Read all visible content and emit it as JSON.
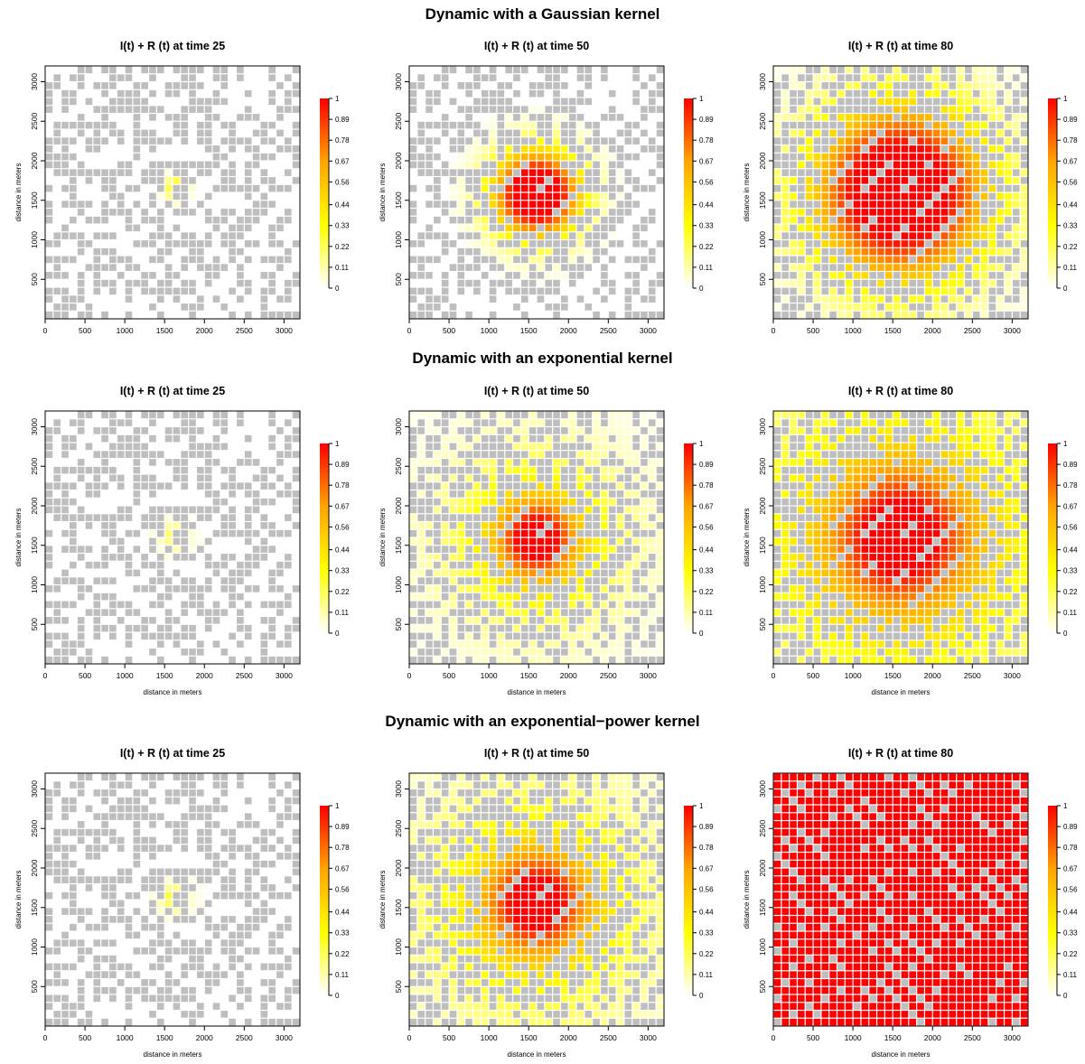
{
  "sections": [
    {
      "title": "Dynamic with a Gaussian kernel"
    },
    {
      "title": "Dynamic with an exponential kernel"
    },
    {
      "title": "Dynamic with an  exponential−power kernel"
    }
  ],
  "panel_titles": [
    "I(t) + R (t) at time 25",
    "I(t) + R (t) at time 50",
    "I(t) + R (t) at time 80"
  ],
  "colors": {
    "empty_cell": "#ffffff",
    "susceptible_host": "#bebebe",
    "ramp": [
      "#ffffff",
      "#ffff00",
      "#ffa500",
      "#ff0000"
    ]
  },
  "chart_data": [
    {
      "type": "heatmap",
      "kernel": "Gaussian",
      "time": 25,
      "title": "I(t) + R (t) at time 25",
      "xlabel": "",
      "ylabel": "distance in meters",
      "xlim": [
        0,
        3200
      ],
      "ylim": [
        0,
        3200
      ],
      "xticks": [
        0,
        500,
        1000,
        1500,
        2000,
        2500,
        3000
      ],
      "yticks": [
        500,
        1000,
        1500,
        2000,
        2500,
        3000
      ],
      "legend_ticks": [
        0,
        0.11,
        0.22,
        0.33,
        0.44,
        0.56,
        0.67,
        0.78,
        0.89,
        1
      ],
      "legend_range": [
        0,
        1
      ],
      "infection_center": [
        1650,
        1650
      ],
      "infection_radius": 220,
      "infection_peak": 0.28,
      "spread": "gaussian"
    },
    {
      "type": "heatmap",
      "kernel": "Gaussian",
      "time": 50,
      "title": "I(t) + R (t) at time 50",
      "xlabel": "",
      "ylabel": "distance in meters",
      "xlim": [
        0,
        3200
      ],
      "ylim": [
        0,
        3200
      ],
      "xticks": [
        0,
        500,
        1000,
        1500,
        2000,
        2500,
        3000
      ],
      "yticks": [
        500,
        1000,
        1500,
        2000,
        2500,
        3000
      ],
      "legend_ticks": [
        0,
        0.11,
        0.22,
        0.33,
        0.44,
        0.56,
        0.67,
        0.78,
        0.89,
        1
      ],
      "legend_range": [
        0,
        1
      ],
      "infection_center": [
        1600,
        1580
      ],
      "infection_radius": 820,
      "infection_peak": 1.0,
      "spread": "gaussian"
    },
    {
      "type": "heatmap",
      "kernel": "Gaussian",
      "time": 80,
      "title": "I(t) + R (t) at time 80",
      "xlabel": "",
      "ylabel": "distance in meters",
      "xlim": [
        0,
        3200
      ],
      "ylim": [
        0,
        3200
      ],
      "xticks": [
        0,
        500,
        1000,
        1500,
        2000,
        2500,
        3000
      ],
      "yticks": [
        500,
        1000,
        1500,
        2000,
        2500,
        3000
      ],
      "legend_ticks": [
        0,
        0.11,
        0.22,
        0.33,
        0.44,
        0.56,
        0.67,
        0.78,
        0.89,
        1
      ],
      "legend_range": [
        0,
        1
      ],
      "infection_center": [
        1600,
        1600
      ],
      "infection_radius": 1650,
      "infection_peak": 1.0,
      "spread": "gaussian"
    },
    {
      "type": "heatmap",
      "kernel": "exponential",
      "time": 25,
      "title": "I(t) + R (t) at time 25",
      "xlabel": "distance in meters",
      "ylabel": "distance in meters",
      "xlim": [
        0,
        3200
      ],
      "ylim": [
        0,
        3200
      ],
      "xticks": [
        0,
        500,
        1000,
        1500,
        2000,
        2500,
        3000
      ],
      "yticks": [
        500,
        1000,
        1500,
        2000,
        2500,
        3000
      ],
      "legend_ticks": [
        0,
        0.11,
        0.22,
        0.33,
        0.44,
        0.56,
        0.67,
        0.78,
        0.89,
        1
      ],
      "legend_range": [
        0,
        1
      ],
      "infection_center": [
        1630,
        1620
      ],
      "infection_radius": 200,
      "infection_peak": 0.26,
      "spread": "exponential"
    },
    {
      "type": "heatmap",
      "kernel": "exponential",
      "time": 50,
      "title": "I(t) + R (t) at time 50",
      "xlabel": "distance in meters",
      "ylabel": "distance in meters",
      "xlim": [
        0,
        3200
      ],
      "ylim": [
        0,
        3200
      ],
      "xticks": [
        0,
        500,
        1000,
        1500,
        2000,
        2500,
        3000
      ],
      "yticks": [
        500,
        1000,
        1500,
        2000,
        2500,
        3000
      ],
      "legend_ticks": [
        0,
        0.11,
        0.22,
        0.33,
        0.44,
        0.56,
        0.67,
        0.78,
        0.89,
        1
      ],
      "legend_range": [
        0,
        1
      ],
      "infection_center": [
        1600,
        1580
      ],
      "infection_radius": 950,
      "infection_peak": 1.0,
      "spread": "exponential"
    },
    {
      "type": "heatmap",
      "kernel": "exponential",
      "time": 80,
      "title": "I(t) + R (t) at time 80",
      "xlabel": "distance in meters",
      "ylabel": "distance in meters",
      "xlim": [
        0,
        3200
      ],
      "ylim": [
        0,
        3200
      ],
      "xticks": [
        0,
        500,
        1000,
        1500,
        2000,
        2500,
        3000
      ],
      "yticks": [
        500,
        1000,
        1500,
        2000,
        2500,
        3000
      ],
      "legend_ticks": [
        0,
        0.11,
        0.22,
        0.33,
        0.44,
        0.56,
        0.67,
        0.78,
        0.89,
        1
      ],
      "legend_range": [
        0,
        1
      ],
      "infection_center": [
        1600,
        1600
      ],
      "infection_radius": 1800,
      "infection_peak": 1.0,
      "spread": "exponential"
    },
    {
      "type": "heatmap",
      "kernel": "exponential-power",
      "time": 25,
      "title": "I(t) + R (t) at time 25",
      "xlabel": "distance in meters",
      "ylabel": "distance in meters",
      "xlim": [
        0,
        3200
      ],
      "ylim": [
        0,
        3200
      ],
      "xticks": [
        0,
        500,
        1000,
        1500,
        2000,
        2500,
        3000
      ],
      "yticks": [
        500,
        1000,
        1500,
        2000,
        2500,
        3000
      ],
      "legend_ticks": [
        0,
        0.11,
        0.22,
        0.33,
        0.44,
        0.56,
        0.67,
        0.78,
        0.89,
        1
      ],
      "legend_range": [
        0,
        1
      ],
      "infection_center": [
        1620,
        1620
      ],
      "infection_radius": 210,
      "infection_peak": 0.3,
      "spread": "exponential"
    },
    {
      "type": "heatmap",
      "kernel": "exponential-power",
      "time": 50,
      "title": "I(t) + R (t) at time 50",
      "xlabel": "distance in meters",
      "ylabel": "distance in meters",
      "xlim": [
        0,
        3200
      ],
      "ylim": [
        0,
        3200
      ],
      "xticks": [
        0,
        500,
        1000,
        1500,
        2000,
        2500,
        3000
      ],
      "yticks": [
        500,
        1000,
        1500,
        2000,
        2500,
        3000
      ],
      "legend_ticks": [
        0,
        0.11,
        0.22,
        0.33,
        0.44,
        0.56,
        0.67,
        0.78,
        0.89,
        1
      ],
      "legend_range": [
        0,
        1
      ],
      "infection_center": [
        1600,
        1560
      ],
      "infection_radius": 1250,
      "infection_peak": 1.0,
      "spread": "exponential"
    },
    {
      "type": "heatmap",
      "kernel": "exponential-power",
      "time": 80,
      "title": "I(t) + R (t) at time 80",
      "xlabel": "distance in meters",
      "ylabel": "distance in meters",
      "xlim": [
        0,
        3200
      ],
      "ylim": [
        0,
        3200
      ],
      "xticks": [
        0,
        500,
        1000,
        1500,
        2000,
        2500,
        3000
      ],
      "yticks": [
        500,
        1000,
        1500,
        2000,
        2500,
        3000
      ],
      "legend_ticks": [
        0,
        0.11,
        0.22,
        0.33,
        0.44,
        0.56,
        0.67,
        0.78,
        0.89,
        1
      ],
      "legend_range": [
        0,
        1
      ],
      "infection_center": [
        1600,
        1600
      ],
      "infection_radius": 4000,
      "infection_peak": 1.0,
      "spread": "uniform"
    }
  ]
}
